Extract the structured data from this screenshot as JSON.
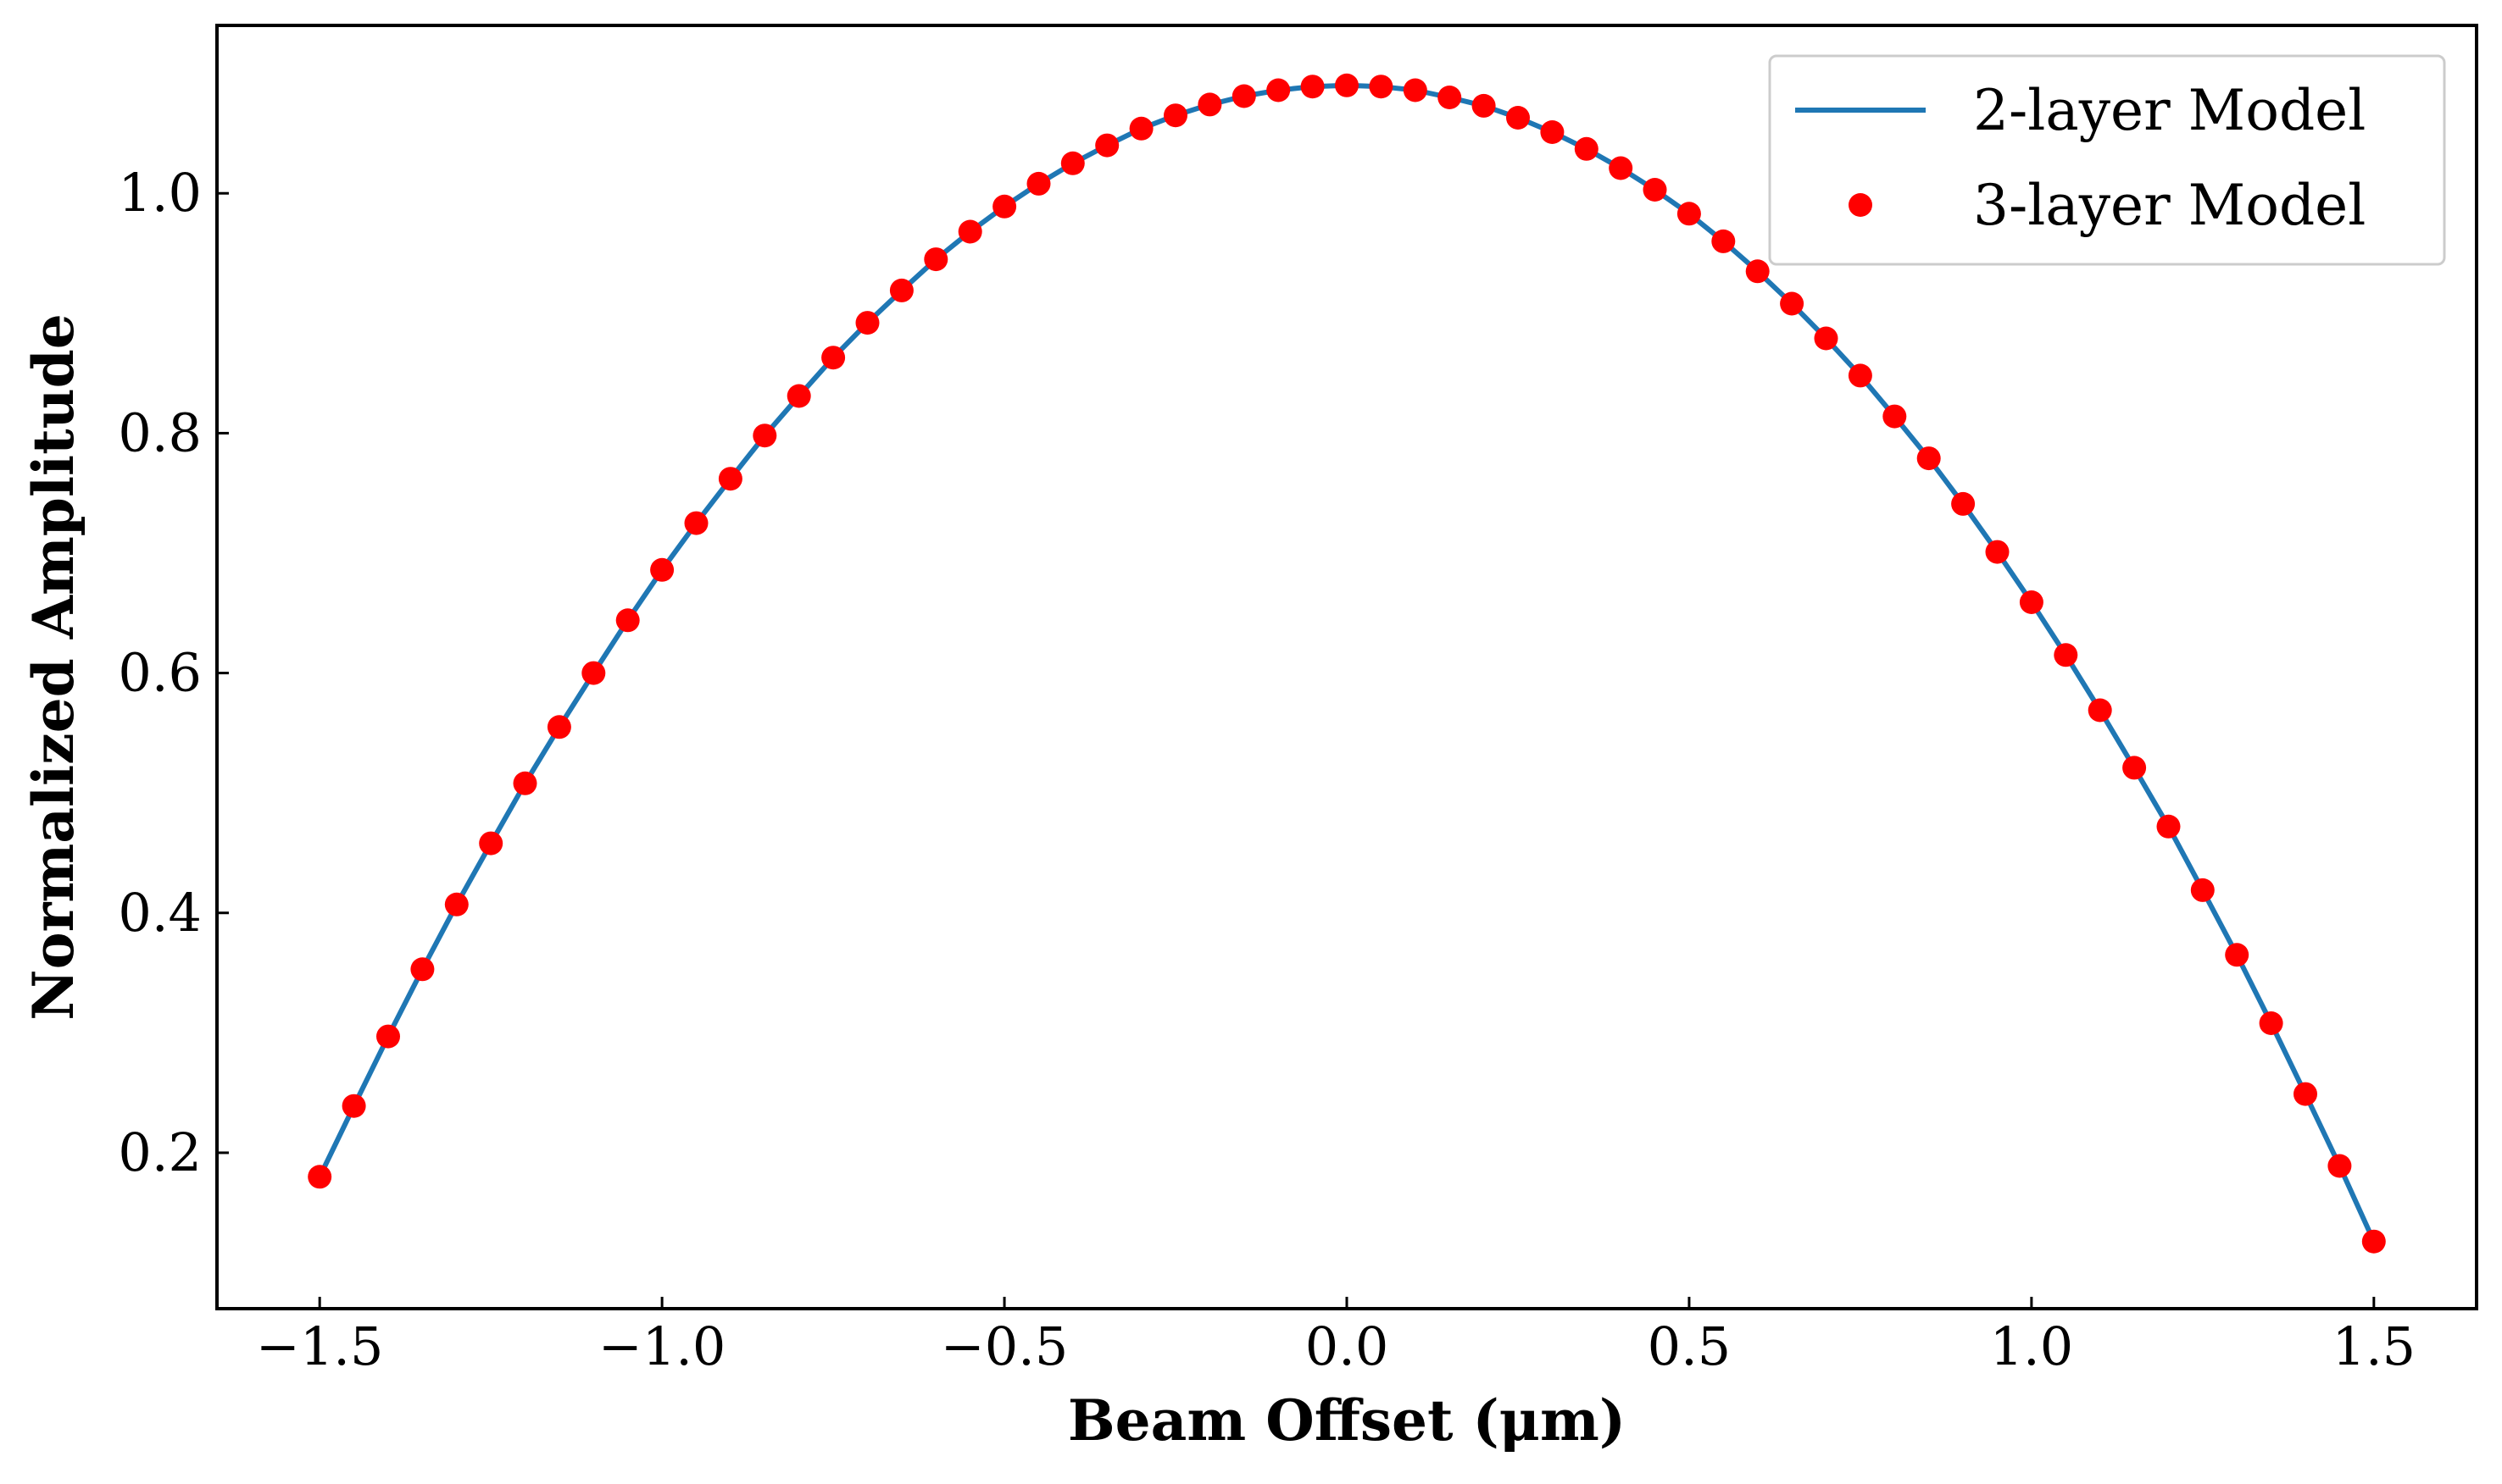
{
  "chart_data": {
    "type": "line",
    "title": "",
    "xlabel": "Beam Offset (μm)",
    "ylabel": "Normalized Amplitude",
    "xlim": [
      -1.65,
      1.65
    ],
    "ylim": [
      0.07,
      1.14
    ],
    "xticks": [
      -1.5,
      -1.0,
      -0.5,
      0.0,
      0.5,
      1.0,
      1.5
    ],
    "xtick_labels": [
      "−1.5",
      "−1.0",
      "−0.5",
      "0.0",
      "0.5",
      "1.0",
      "1.5"
    ],
    "yticks": [
      0.2,
      0.4,
      0.6,
      0.8,
      1.0
    ],
    "ytick_labels": [
      "0.2",
      "0.4",
      "0.6",
      "0.8",
      "1.0"
    ],
    "legend_position": "top-right",
    "grid": false,
    "series": [
      {
        "name": "2-layer Model",
        "style": "line",
        "color": "#1f77b4",
        "x": [
          -1.5,
          -1.45,
          -1.4,
          -1.35,
          -1.3,
          -1.25,
          -1.2,
          -1.15,
          -1.1,
          -1.05,
          -1.0,
          -0.95,
          -0.9,
          -0.85,
          -0.8,
          -0.75,
          -0.7,
          -0.65,
          -0.6,
          -0.55,
          -0.5,
          -0.45,
          -0.4,
          -0.35,
          -0.3,
          -0.25,
          -0.2,
          -0.15,
          -0.1,
          -0.05,
          0.0,
          0.05,
          0.1,
          0.15,
          0.2,
          0.25,
          0.3,
          0.35,
          0.4,
          0.45,
          0.5,
          0.55,
          0.6,
          0.65,
          0.7,
          0.75,
          0.8,
          0.85,
          0.9,
          0.95,
          1.0,
          1.05,
          1.1,
          1.15,
          1.2,
          1.25,
          1.3,
          1.35,
          1.4,
          1.45,
          1.5
        ],
        "y": [
          0.18,
          0.239,
          0.297,
          0.353,
          0.407,
          0.458,
          0.508,
          0.555,
          0.6,
          0.644,
          0.686,
          0.725,
          0.762,
          0.798,
          0.831,
          0.863,
          0.892,
          0.919,
          0.945,
          0.968,
          0.989,
          1.008,
          1.025,
          1.04,
          1.054,
          1.065,
          1.074,
          1.081,
          1.086,
          1.089,
          1.09,
          1.089,
          1.086,
          1.08,
          1.073,
          1.063,
          1.051,
          1.037,
          1.021,
          1.003,
          0.983,
          0.96,
          0.935,
          0.908,
          0.879,
          0.848,
          0.814,
          0.779,
          0.741,
          0.701,
          0.659,
          0.615,
          0.569,
          0.521,
          0.472,
          0.419,
          0.365,
          0.308,
          0.249,
          0.189,
          0.126
        ]
      },
      {
        "name": "3-layer Model",
        "style": "markers",
        "color": "#ff0000",
        "x": [
          -1.5,
          -1.45,
          -1.4,
          -1.35,
          -1.3,
          -1.25,
          -1.2,
          -1.15,
          -1.1,
          -1.05,
          -1.0,
          -0.95,
          -0.9,
          -0.85,
          -0.8,
          -0.75,
          -0.7,
          -0.65,
          -0.6,
          -0.55,
          -0.5,
          -0.45,
          -0.4,
          -0.35,
          -0.3,
          -0.25,
          -0.2,
          -0.15,
          -0.1,
          -0.05,
          0.0,
          0.05,
          0.1,
          0.15,
          0.2,
          0.25,
          0.3,
          0.35,
          0.4,
          0.45,
          0.5,
          0.55,
          0.6,
          0.65,
          0.7,
          0.75,
          0.8,
          0.85,
          0.9,
          0.95,
          1.0,
          1.05,
          1.1,
          1.15,
          1.2,
          1.25,
          1.3,
          1.35,
          1.4,
          1.45,
          1.5
        ],
        "y": [
          0.18,
          0.239,
          0.297,
          0.353,
          0.407,
          0.458,
          0.508,
          0.555,
          0.6,
          0.644,
          0.686,
          0.725,
          0.762,
          0.798,
          0.831,
          0.863,
          0.892,
          0.919,
          0.945,
          0.968,
          0.989,
          1.008,
          1.025,
          1.04,
          1.054,
          1.065,
          1.074,
          1.081,
          1.086,
          1.089,
          1.09,
          1.089,
          1.086,
          1.08,
          1.073,
          1.063,
          1.051,
          1.037,
          1.021,
          1.003,
          0.983,
          0.96,
          0.935,
          0.908,
          0.879,
          0.848,
          0.814,
          0.779,
          0.741,
          0.701,
          0.659,
          0.615,
          0.569,
          0.521,
          0.472,
          0.419,
          0.365,
          0.308,
          0.249,
          0.189,
          0.126
        ]
      }
    ]
  }
}
